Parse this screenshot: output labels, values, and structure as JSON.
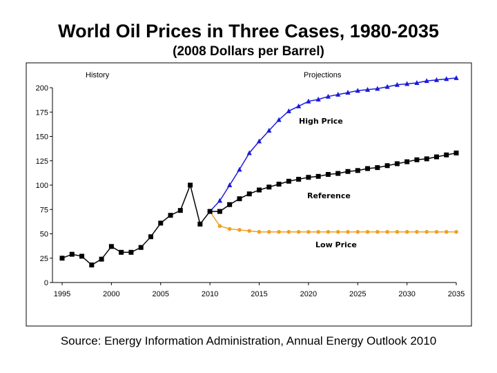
{
  "colors": {
    "history": "#000000",
    "high": "#1a1adc",
    "reference": "#000000",
    "low": "#f0a020"
  },
  "chart_data": {
    "type": "line",
    "title": "World Oil Prices in Three Cases, 1980-2035",
    "subtitle": "(2008 Dollars per Barrel)",
    "source": "Source: Energy Information Administration, Annual Energy Outlook 2010",
    "xlim": [
      1995,
      2035
    ],
    "ylim": [
      0,
      200
    ],
    "x_ticks": [
      "1995",
      "2000",
      "2005",
      "2010",
      "2015",
      "2020",
      "2025",
      "2030",
      "2035"
    ],
    "y_ticks": [
      "0",
      "25",
      "50",
      "75",
      "100",
      "125",
      "150",
      "175",
      "200"
    ],
    "grid": false,
    "region_labels": [
      "History",
      "Projections"
    ],
    "series": [
      {
        "name": "History",
        "marker": "square",
        "x": [
          1995,
          1996,
          1997,
          1998,
          1999,
          2000,
          2001,
          2002,
          2003,
          2004,
          2005,
          2006,
          2007,
          2008,
          2009,
          2010
        ],
        "values": [
          25,
          29,
          27,
          18,
          24,
          37,
          31,
          31,
          36,
          47,
          61,
          69,
          74,
          100,
          60,
          73
        ]
      },
      {
        "name": "High Price",
        "marker": "triangle",
        "x": [
          2010,
          2011,
          2012,
          2013,
          2014,
          2015,
          2016,
          2017,
          2018,
          2019,
          2020,
          2021,
          2022,
          2023,
          2024,
          2025,
          2026,
          2027,
          2028,
          2029,
          2030,
          2031,
          2032,
          2033,
          2034,
          2035
        ],
        "values": [
          73,
          84,
          100,
          116,
          133,
          145,
          156,
          167,
          176,
          181,
          186,
          188,
          191,
          193,
          195,
          197,
          198,
          199,
          201,
          203,
          204,
          205,
          207,
          208,
          209,
          210
        ]
      },
      {
        "name": "Reference",
        "marker": "square",
        "x": [
          2010,
          2011,
          2012,
          2013,
          2014,
          2015,
          2016,
          2017,
          2018,
          2019,
          2020,
          2021,
          2022,
          2023,
          2024,
          2025,
          2026,
          2027,
          2028,
          2029,
          2030,
          2031,
          2032,
          2033,
          2034,
          2035
        ],
        "values": [
          73,
          73,
          80,
          86,
          91,
          95,
          98,
          101,
          104,
          106,
          108,
          109,
          111,
          112,
          114,
          115,
          117,
          118,
          120,
          122,
          124,
          126,
          127,
          129,
          131,
          133
        ]
      },
      {
        "name": "Low Price",
        "marker": "circle",
        "x": [
          2010,
          2011,
          2012,
          2013,
          2014,
          2015,
          2016,
          2017,
          2018,
          2019,
          2020,
          2021,
          2022,
          2023,
          2024,
          2025,
          2026,
          2027,
          2028,
          2029,
          2030,
          2031,
          2032,
          2033,
          2034,
          2035
        ],
        "values": [
          73,
          58,
          55,
          54,
          53,
          52,
          52,
          52,
          52,
          52,
          52,
          52,
          52,
          52,
          52,
          52,
          52,
          52,
          52,
          52,
          52,
          52,
          52,
          52,
          52,
          52
        ]
      }
    ]
  }
}
